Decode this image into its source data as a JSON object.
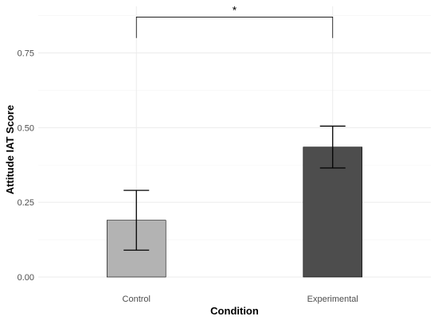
{
  "chart_data": {
    "type": "bar",
    "xlabel": "Condition",
    "ylabel": "Attitude IAT Score",
    "categories": [
      "Control",
      "Experimental"
    ],
    "values": [
      0.19,
      0.435
    ],
    "error_low": [
      0.09,
      0.365
    ],
    "error_high": [
      0.29,
      0.505
    ],
    "bar_colors": [
      "#b3b3b3",
      "#4d4d4d"
    ],
    "ylim": [
      0,
      0.8
    ],
    "y_ticks": [
      0.0,
      0.25,
      0.5,
      0.75
    ],
    "y_tick_labels": [
      "0.00",
      "0.25",
      "0.50",
      "0.75"
    ],
    "grid": true,
    "significance": {
      "between": [
        "Control",
        "Experimental"
      ],
      "label": "*",
      "y": 0.87,
      "drop_to": 0.8
    }
  }
}
